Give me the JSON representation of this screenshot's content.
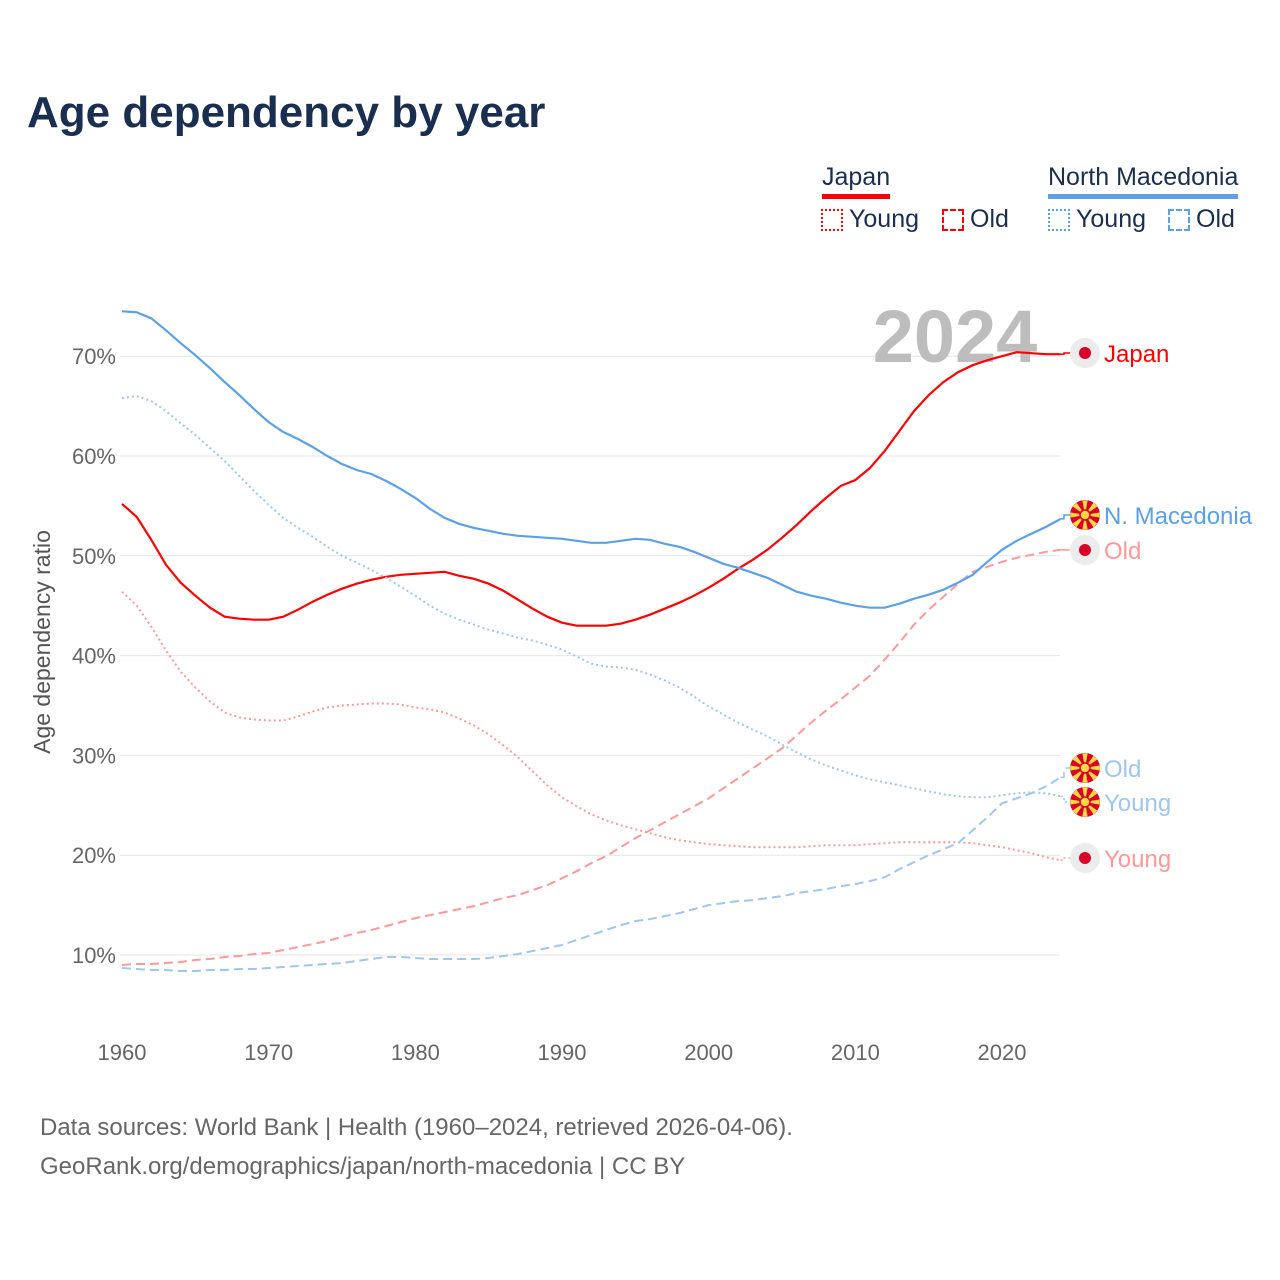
{
  "chart_data": {
    "type": "line",
    "title": "Age dependency by year",
    "ylabel": "Age dependency ratio",
    "xlabel": "",
    "year_watermark": "2024",
    "xlim": [
      1960,
      2024
    ],
    "ylim": [
      3,
      78
    ],
    "x_ticks": [
      "1960",
      "1970",
      "1980",
      "1990",
      "2000",
      "2010",
      "2020"
    ],
    "y_ticks": [
      "10%",
      "20%",
      "30%",
      "40%",
      "50%",
      "60%",
      "70%"
    ],
    "grid": true,
    "legend": {
      "position": "top-right",
      "groups": [
        {
          "country": "Japan",
          "items": [
            "Young",
            "Old"
          ],
          "color": "#ff0000"
        },
        {
          "country": "North Macedonia",
          "items": [
            "Young",
            "Old"
          ],
          "color": "#5ca0e8"
        }
      ]
    },
    "x_start": 1960,
    "series": [
      {
        "name": "Japan",
        "label": "Japan",
        "country": "Japan",
        "kind": "total",
        "color": "#ff0000",
        "values": [
          55.2,
          53.9,
          51.6,
          49.1,
          47.3,
          46.0,
          44.8,
          43.9,
          43.7,
          43.6,
          43.6,
          43.9,
          44.6,
          45.4,
          46.1,
          46.7,
          47.2,
          47.6,
          47.9,
          48.1,
          48.2,
          48.3,
          48.4,
          48.0,
          47.7,
          47.2,
          46.5,
          45.6,
          44.7,
          43.9,
          43.3,
          43.0,
          43.0,
          43.0,
          43.2,
          43.6,
          44.1,
          44.7,
          45.3,
          46.0,
          46.8,
          47.7,
          48.7,
          49.6,
          50.6,
          51.8,
          53.1,
          54.5,
          55.8,
          57.0,
          57.6,
          58.8,
          60.5,
          62.5,
          64.5,
          66.1,
          67.4,
          68.4,
          69.1,
          69.6,
          70.0,
          70.4,
          70.3,
          70.2,
          70.2
        ]
      },
      {
        "name": "Japan Young",
        "label": "Young",
        "country": "Japan",
        "kind": "young",
        "color": "#ff9999",
        "values": [
          46.4,
          45.0,
          42.9,
          40.5,
          38.4,
          36.8,
          35.4,
          34.3,
          33.8,
          33.6,
          33.5,
          33.5,
          33.9,
          34.4,
          34.8,
          35.0,
          35.1,
          35.2,
          35.2,
          35.1,
          34.8,
          34.6,
          34.3,
          33.7,
          33.0,
          32.1,
          31.0,
          29.8,
          28.4,
          27.0,
          25.8,
          24.9,
          24.1,
          23.5,
          23.0,
          22.6,
          22.2,
          21.8,
          21.5,
          21.3,
          21.1,
          21.0,
          20.9,
          20.8,
          20.8,
          20.8,
          20.8,
          20.9,
          21.0,
          21.0,
          21.0,
          21.1,
          21.2,
          21.3,
          21.3,
          21.3,
          21.3,
          21.3,
          21.2,
          21.0,
          20.8,
          20.5,
          20.2,
          19.8,
          19.5
        ]
      },
      {
        "name": "Japan Old",
        "label": "Old",
        "country": "Japan",
        "kind": "old",
        "color": "#ff9999",
        "values": [
          9.0,
          9.1,
          9.1,
          9.2,
          9.3,
          9.5,
          9.6,
          9.8,
          9.9,
          10.1,
          10.2,
          10.5,
          10.8,
          11.1,
          11.4,
          11.8,
          12.2,
          12.5,
          12.9,
          13.3,
          13.7,
          14.0,
          14.3,
          14.6,
          14.9,
          15.3,
          15.7,
          16.0,
          16.5,
          17.0,
          17.7,
          18.4,
          19.2,
          19.9,
          20.8,
          21.7,
          22.5,
          23.3,
          24.1,
          24.9,
          25.7,
          26.7,
          27.7,
          28.7,
          29.7,
          30.7,
          32.0,
          33.3,
          34.5,
          35.6,
          36.8,
          38.0,
          39.6,
          41.3,
          43.1,
          44.6,
          45.9,
          47.2,
          48.4,
          48.9,
          49.4,
          49.8,
          50.1,
          50.4,
          50.6
        ]
      },
      {
        "name": "North Macedonia",
        "label": "N. Macedonia",
        "country": "North Macedonia",
        "kind": "total",
        "color": "#5ca0e8",
        "values": [
          74.5,
          74.4,
          73.8,
          72.6,
          71.3,
          70.1,
          68.8,
          67.4,
          66.1,
          64.7,
          63.4,
          62.4,
          61.7,
          60.9,
          60.0,
          59.2,
          58.6,
          58.2,
          57.5,
          56.7,
          55.8,
          54.7,
          53.8,
          53.2,
          52.8,
          52.5,
          52.2,
          52.0,
          51.9,
          51.8,
          51.7,
          51.5,
          51.3,
          51.3,
          51.5,
          51.7,
          51.6,
          51.2,
          50.9,
          50.4,
          49.8,
          49.2,
          48.8,
          48.3,
          47.8,
          47.1,
          46.4,
          46.0,
          45.7,
          45.3,
          45.0,
          44.8,
          44.8,
          45.2,
          45.7,
          46.1,
          46.6,
          47.3,
          48.1,
          49.4,
          50.6,
          51.5,
          52.2,
          52.9,
          53.7
        ]
      },
      {
        "name": "North Macedonia Old",
        "label": "Old",
        "country": "North Macedonia",
        "kind": "old",
        "color": "#9fc6ef",
        "values": [
          8.7,
          8.6,
          8.5,
          8.5,
          8.4,
          8.4,
          8.5,
          8.5,
          8.6,
          8.6,
          8.7,
          8.8,
          8.9,
          9.0,
          9.1,
          9.2,
          9.4,
          9.6,
          9.8,
          9.8,
          9.7,
          9.6,
          9.6,
          9.6,
          9.6,
          9.7,
          9.9,
          10.1,
          10.4,
          10.7,
          11.0,
          11.5,
          12.0,
          12.5,
          13.0,
          13.4,
          13.6,
          13.9,
          14.2,
          14.6,
          15.0,
          15.2,
          15.4,
          15.5,
          15.7,
          15.9,
          16.2,
          16.4,
          16.6,
          16.9,
          17.1,
          17.4,
          17.8,
          18.6,
          19.3,
          20.0,
          20.6,
          21.2,
          22.5,
          23.8,
          25.2,
          25.7,
          26.2,
          26.9,
          27.8
        ]
      },
      {
        "name": "North Macedonia Young",
        "label": "Young",
        "country": "North Macedonia",
        "kind": "young",
        "color": "#9fc6ef",
        "values": [
          65.8,
          66.0,
          65.5,
          64.5,
          63.3,
          62.1,
          60.8,
          59.5,
          58.0,
          56.5,
          55.1,
          53.8,
          52.8,
          51.9,
          50.9,
          50.0,
          49.3,
          48.6,
          47.8,
          46.9,
          46.0,
          45.0,
          44.2,
          43.6,
          43.1,
          42.6,
          42.2,
          41.8,
          41.5,
          41.1,
          40.6,
          39.9,
          39.2,
          38.9,
          38.8,
          38.6,
          38.1,
          37.5,
          36.8,
          35.9,
          34.9,
          34.1,
          33.3,
          32.6,
          31.9,
          31.1,
          30.3,
          29.6,
          29.0,
          28.5,
          28.0,
          27.6,
          27.3,
          27.0,
          26.7,
          26.4,
          26.1,
          25.9,
          25.8,
          25.8,
          26.0,
          26.2,
          26.3,
          26.2,
          25.9
        ]
      }
    ]
  },
  "footer": {
    "line1": "Data sources: World Bank | Health (1960–2024, retrieved 2026-04-06).",
    "line2": "GeoRank.org/demographics/japan/north-macedonia | CC BY"
  }
}
